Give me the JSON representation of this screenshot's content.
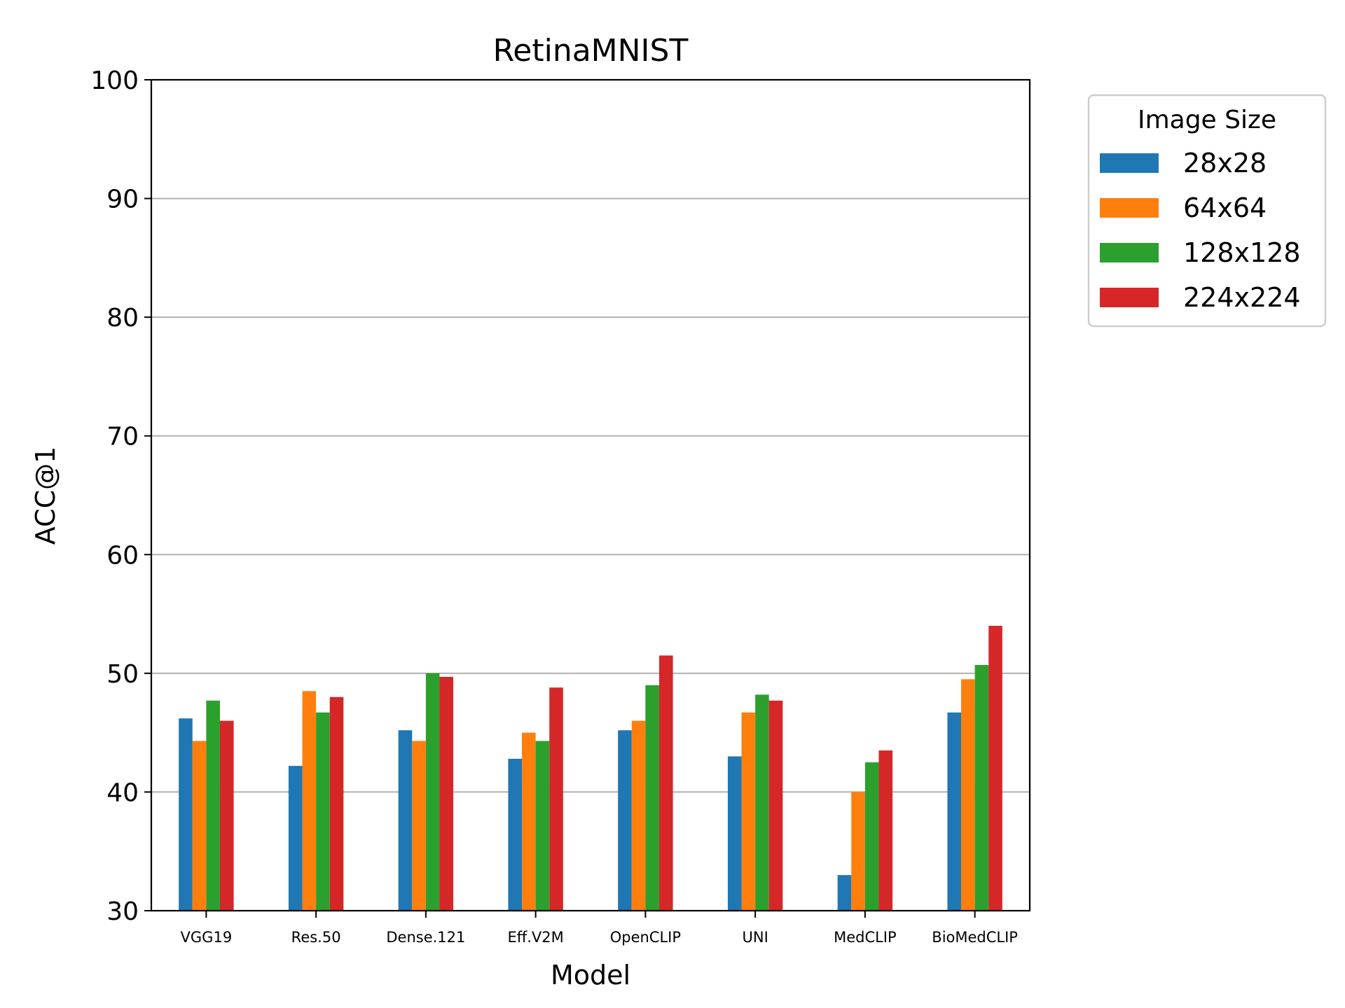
{
  "chart_data": {
    "type": "bar",
    "title": "RetinaMNIST",
    "xlabel": "Model",
    "ylabel": "ACC@1",
    "ylim": [
      30,
      100
    ],
    "yticks": [
      30,
      40,
      50,
      60,
      70,
      80,
      90,
      100
    ],
    "grid": "horizontal",
    "legend_title": "Image Size",
    "legend_placement": "outside-top-right",
    "categories": [
      "VGG19",
      "Res.50",
      "Dense.121",
      "Eff.V2M",
      "OpenCLIP",
      "UNI",
      "MedCLIP",
      "BioMedCLIP"
    ],
    "series": [
      {
        "name": "28x28",
        "color": "#1f77b4",
        "values": [
          46.2,
          42.2,
          45.2,
          42.8,
          45.2,
          43.0,
          33.0,
          46.7
        ]
      },
      {
        "name": "64x64",
        "color": "#ff7f0e",
        "values": [
          44.3,
          48.5,
          44.3,
          45.0,
          46.0,
          46.7,
          40.0,
          49.5
        ]
      },
      {
        "name": "128x128",
        "color": "#2ca02c",
        "values": [
          47.7,
          46.7,
          50.0,
          44.3,
          49.0,
          48.2,
          42.5,
          50.7
        ]
      },
      {
        "name": "224x224",
        "color": "#d62728",
        "values": [
          46.0,
          48.0,
          49.7,
          48.8,
          51.5,
          47.7,
          43.5,
          54.0
        ]
      }
    ]
  }
}
